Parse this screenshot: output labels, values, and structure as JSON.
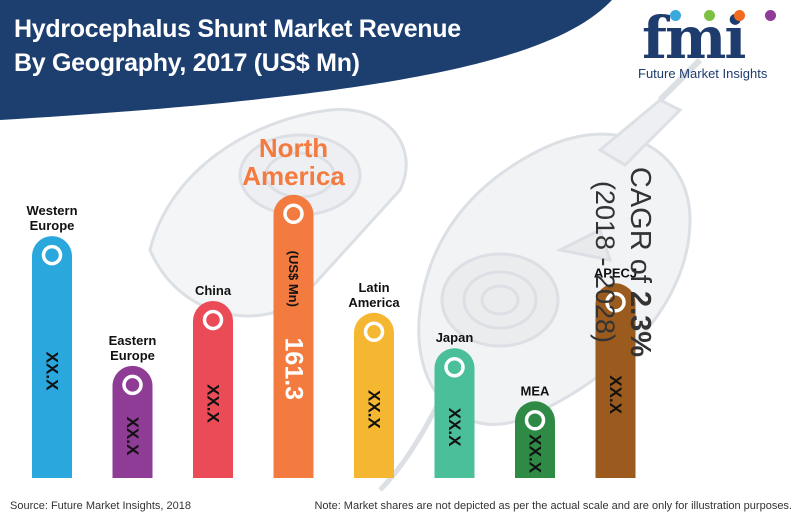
{
  "header": {
    "title_line1": "Hydrocephalus Shunt Market Revenue",
    "title_line2": "By Geography, 2017 (US$ Mn)"
  },
  "logo": {
    "wordmark": "fmi",
    "tagline": "Future Market Insights",
    "dot_colors": [
      "#3aa9de",
      "#7cc242",
      "#f26b21",
      "#8e3c97"
    ]
  },
  "cagr": {
    "prefix": "CAGR of ",
    "value": "2.3%",
    "period": "(2018 - 2028)"
  },
  "chart_data": {
    "type": "bar",
    "title": "Hydrocephalus Shunt Market Revenue By Geography, 2017 (US$ Mn)",
    "categories": [
      "Western Europe",
      "Eastern Europe",
      "China",
      "North America",
      "Latin America",
      "Japan",
      "MEA",
      "APECJ"
    ],
    "category_label_lines": [
      [
        "Western",
        "Europe"
      ],
      [
        "Eastern",
        "Europe"
      ],
      [
        "China"
      ],
      [
        "North",
        "America"
      ],
      [
        "Latin",
        "America"
      ],
      [
        "Japan"
      ],
      [
        "MEA"
      ],
      [
        "APECJ"
      ]
    ],
    "value_labels": [
      "XX.X",
      "XX.X",
      "XX.X",
      "161.3",
      "XX.X",
      "XX.X",
      "XX.X",
      "XX.X"
    ],
    "value_unit_label": "(US$ Mn)",
    "relative_heights": [
      0.82,
      0.38,
      0.6,
      0.96,
      0.56,
      0.44,
      0.26,
      0.66
    ],
    "colors": [
      "#2aa7dc",
      "#8e3c96",
      "#ea4b57",
      "#f47b3f",
      "#f5b731",
      "#4bbf9a",
      "#2f8a46",
      "#9b5a1e"
    ],
    "highlight_index": 3,
    "note": "Market shares are not depicted as per the actual scale and are only for illustration purposes."
  },
  "footer": {
    "source": "Source: Future Market Insights, 2018",
    "note": "Note: Market shares are not depicted as per the actual scale and are only for illustration purposes."
  }
}
